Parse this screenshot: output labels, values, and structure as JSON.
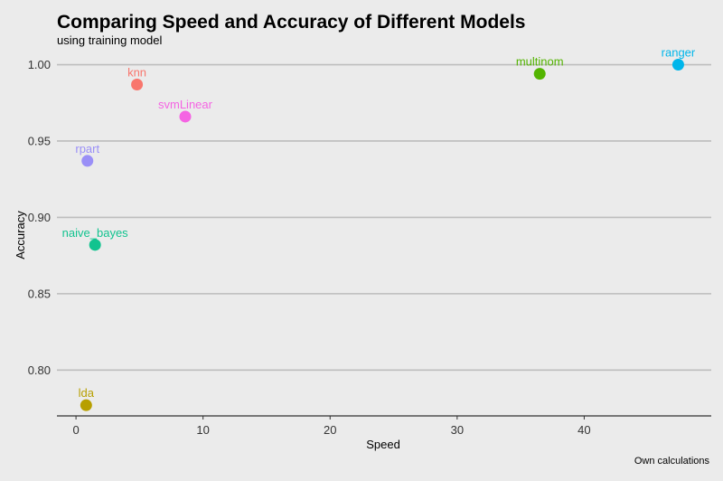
{
  "colors": {
    "background": "#ebebeb",
    "gridline": "#bdbdbd",
    "axis": "#000000"
  },
  "chart_data": {
    "type": "scatter",
    "title": "Comparing Speed and Accuracy of Different Models",
    "subtitle": "using training model",
    "caption": "Own calculations",
    "xlabel": "Speed",
    "ylabel": "Accuracy",
    "xlim": [
      -1.5,
      50
    ],
    "ylim": [
      0.77,
      1.008
    ],
    "x_ticks": [
      0,
      10,
      20,
      30,
      40
    ],
    "y_ticks": [
      0.8,
      0.85,
      0.9,
      0.95,
      1.0
    ],
    "y_tick_labels": [
      "0.80",
      "0.85",
      "0.90",
      "0.95",
      "1.00"
    ],
    "grid": "horizontal",
    "legend": "none",
    "points": [
      {
        "label": "knn",
        "x": 4.8,
        "y": 0.987,
        "color": "#f8766d"
      },
      {
        "label": "svmLinear",
        "x": 8.6,
        "y": 0.966,
        "color": "#f564e3"
      },
      {
        "label": "rpart",
        "x": 0.9,
        "y": 0.937,
        "color": "#9a8ff7"
      },
      {
        "label": "naive_bayes",
        "x": 1.5,
        "y": 0.882,
        "color": "#12c38f"
      },
      {
        "label": "lda",
        "x": 0.8,
        "y": 0.777,
        "color": "#b79f00"
      },
      {
        "label": "multinom",
        "x": 36.5,
        "y": 0.994,
        "color": "#53b400"
      },
      {
        "label": "ranger",
        "x": 47.4,
        "y": 1.0,
        "color": "#00b6eb"
      }
    ]
  }
}
